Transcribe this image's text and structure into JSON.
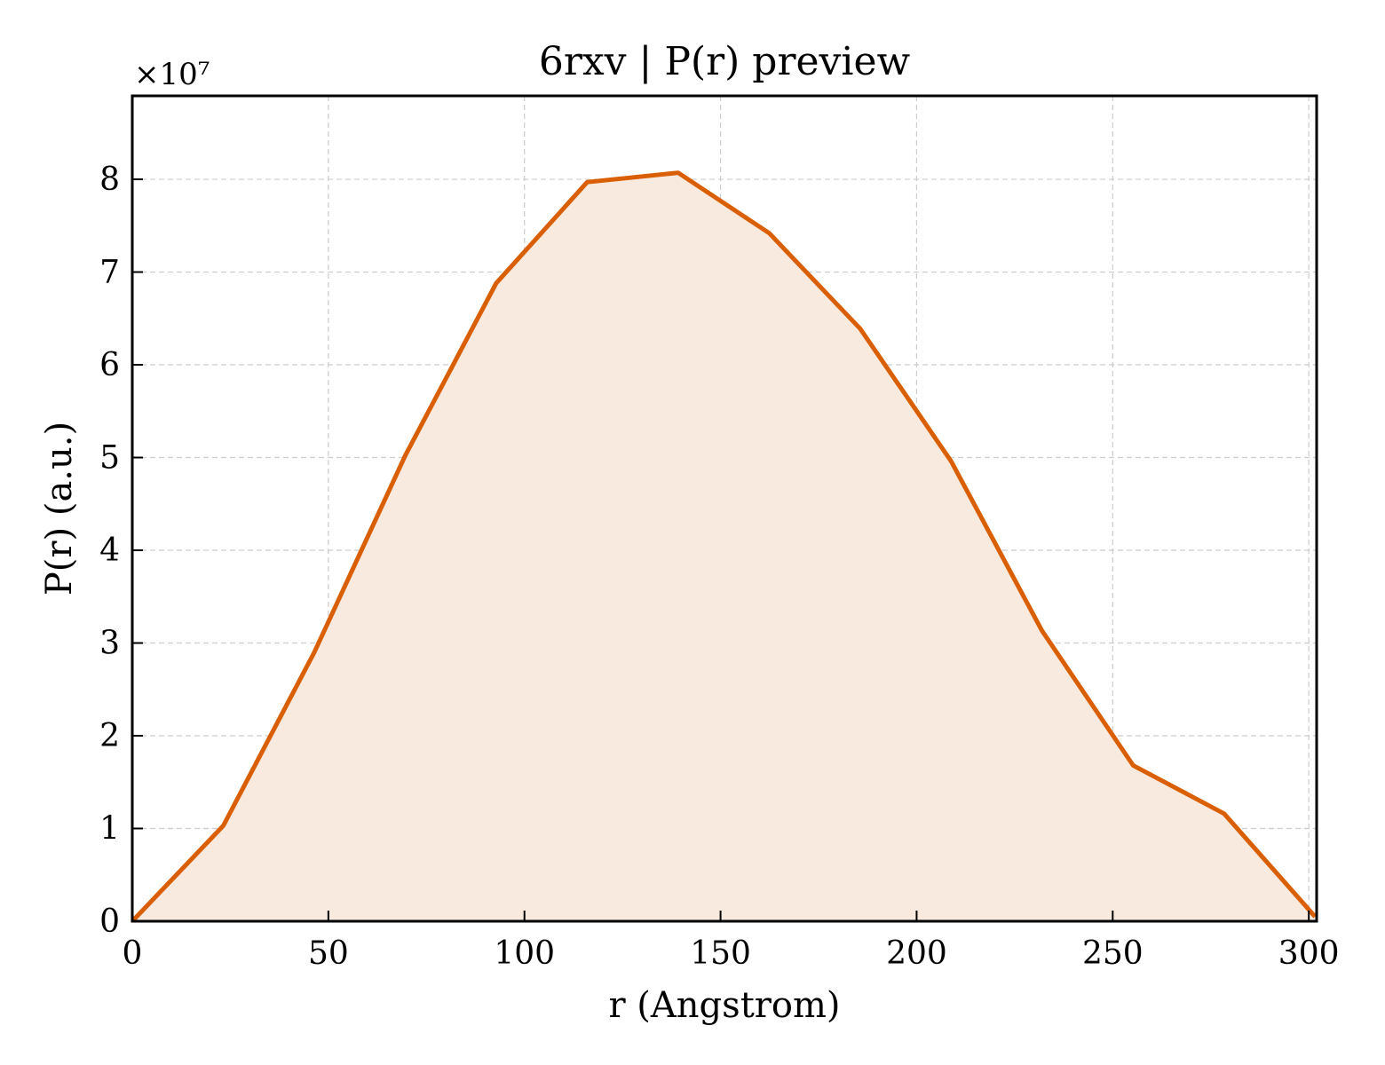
{
  "chart_data": {
    "type": "area",
    "title": "6rxv | P(r) preview",
    "xlabel": "r (Angstrom)",
    "ylabel": "P(r) (a.u.)",
    "y_offset_label": "×10⁷",
    "y_scale": 10000000,
    "xlim": [
      0,
      302
    ],
    "ylim": [
      0,
      8.9
    ],
    "xticks": [
      0,
      50,
      100,
      150,
      200,
      250,
      300
    ],
    "yticks": [
      0,
      1,
      2,
      3,
      4,
      5,
      6,
      7,
      8
    ],
    "grid": true,
    "series": [
      {
        "color": "#d95f02",
        "fill_color": "#f9eadf",
        "x": [
          0,
          23.2,
          46.4,
          69.6,
          92.8,
          116.0,
          139.2,
          162.4,
          185.6,
          208.8,
          232.0,
          255.2,
          278.4,
          301.6
        ],
        "y": [
          0.0,
          1.03,
          2.9,
          5.02,
          6.88,
          7.97,
          8.07,
          7.42,
          6.39,
          4.96,
          3.13,
          1.68,
          1.16,
          0.05
        ]
      }
    ]
  }
}
